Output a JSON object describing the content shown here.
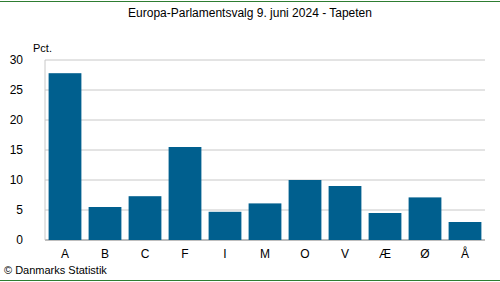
{
  "chart_data": {
    "type": "bar",
    "title": "Europa-Parlamentsvalg 9. juni 2024 - Tapeten",
    "ylabel": "Pct.",
    "source": "© Danmarks Statistik",
    "categories": [
      "A",
      "B",
      "C",
      "F",
      "I",
      "M",
      "O",
      "V",
      "Æ",
      "Ø",
      "Å"
    ],
    "values": [
      27.8,
      5.5,
      7.3,
      15.5,
      4.7,
      6.1,
      10.0,
      9.0,
      4.5,
      7.1,
      3.0
    ],
    "color": "#005f8e",
    "ylim": [
      0,
      30
    ],
    "yticks": [
      0,
      5,
      10,
      15,
      20,
      25,
      30
    ],
    "grid": true
  }
}
